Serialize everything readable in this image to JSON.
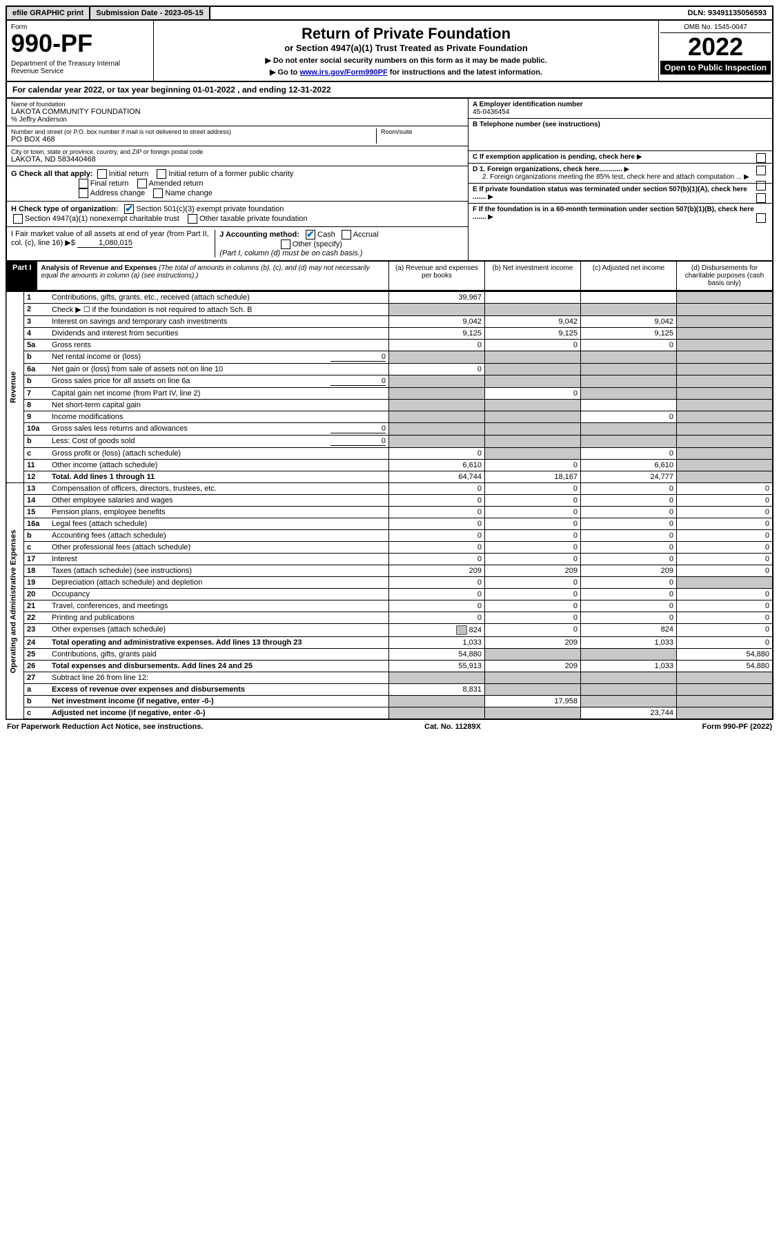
{
  "top_bar": {
    "efile": "efile GRAPHIC print",
    "submission": "Submission Date - 2023-05-15",
    "dln": "DLN: 93491135056593"
  },
  "header": {
    "form_label": "Form",
    "form_number": "990-PF",
    "dept": "Department of the Treasury\nInternal Revenue Service",
    "title": "Return of Private Foundation",
    "subtitle": "or Section 4947(a)(1) Trust Treated as Private Foundation",
    "instr1": "▶ Do not enter social security numbers on this form as it may be made public.",
    "instr2_pre": "▶ Go to ",
    "instr2_link": "www.irs.gov/Form990PF",
    "instr2_post": " for instructions and the latest information.",
    "omb": "OMB No. 1545-0047",
    "year": "2022",
    "open": "Open to Public Inspection"
  },
  "cal_year": "For calendar year 2022, or tax year beginning 01-01-2022          , and ending 12-31-2022",
  "entity": {
    "name_label": "Name of foundation",
    "name": "LAKOTA COMMUNITY FOUNDATION",
    "careof": "% Jeffry Anderson",
    "street_label": "Number and street (or P.O. box number if mail is not delivered to street address)",
    "street": "PO BOX 468",
    "room_label": "Room/suite",
    "city_label": "City or town, state or province, country, and ZIP or foreign postal code",
    "city": "LAKOTA, ND  583440468",
    "ein_label": "A Employer identification number",
    "ein": "45-0436454",
    "phone_label": "B Telephone number (see instructions)",
    "c_label": "C If exemption application is pending, check here",
    "d1": "D 1. Foreign organizations, check here............",
    "d2": "2. Foreign organizations meeting the 85% test, check here and attach computation ...",
    "e": "E If private foundation status was terminated under section 507(b)(1)(A), check here .......",
    "f": "F If the foundation is in a 60-month termination under section 507(b)(1)(B), check here .......",
    "g_label": "G Check all that apply:",
    "g_opts": [
      "Initial return",
      "Initial return of a former public charity",
      "Final return",
      "Amended return",
      "Address change",
      "Name change"
    ],
    "h_label": "H Check type of organization:",
    "h1": "Section 501(c)(3) exempt private foundation",
    "h2": "Section 4947(a)(1) nonexempt charitable trust",
    "h3": "Other taxable private foundation",
    "i_label": "I Fair market value of all assets at end of year (from Part II, col. (c), line 16) ▶$ ",
    "i_val": "1,080,015",
    "j_label": "J Accounting method:",
    "j_cash": "Cash",
    "j_accrual": "Accrual",
    "j_other": "Other (specify)",
    "j_note": "(Part I, column (d) must be on cash basis.)"
  },
  "part1": {
    "label": "Part I",
    "title": "Analysis of Revenue and Expenses",
    "title_note": " (The total of amounts in columns (b), (c), and (d) may not necessarily equal the amounts in column (a) (see instructions).)",
    "cols": {
      "a": "(a) Revenue and expenses per books",
      "b": "(b) Net investment income",
      "c": "(c) Adjusted net income",
      "d": "(d) Disbursements for charitable purposes (cash basis only)"
    }
  },
  "side_labels": {
    "revenue": "Revenue",
    "expenses": "Operating and Administrative Expenses"
  },
  "rows": [
    {
      "n": "1",
      "desc": "Contributions, gifts, grants, etc., received (attach schedule)",
      "a": "39,967",
      "b": "",
      "c": "",
      "d": "",
      "d_shade": true
    },
    {
      "n": "2",
      "desc": "Check ▶ ☐ if the foundation is not required to attach Sch. B",
      "a": "",
      "b": "",
      "c": "",
      "d": "",
      "a_shade": true,
      "b_shade": true,
      "c_shade": true,
      "d_shade": true,
      "no_border": true
    },
    {
      "n": "3",
      "desc": "Interest on savings and temporary cash investments",
      "a": "9,042",
      "b": "9,042",
      "c": "9,042",
      "d": "",
      "d_shade": true
    },
    {
      "n": "4",
      "desc": "Dividends and interest from securities",
      "a": "9,125",
      "b": "9,125",
      "c": "9,125",
      "d": "",
      "d_shade": true
    },
    {
      "n": "5a",
      "desc": "Gross rents",
      "a": "0",
      "b": "0",
      "c": "0",
      "d": "",
      "d_shade": true
    },
    {
      "n": "b",
      "desc": "Net rental income or (loss)",
      "inline_val": "0",
      "a": "",
      "b": "",
      "c": "",
      "d": "",
      "a_shade": true,
      "b_shade": true,
      "c_shade": true,
      "d_shade": true
    },
    {
      "n": "6a",
      "desc": "Net gain or (loss) from sale of assets not on line 10",
      "a": "0",
      "b": "",
      "c": "",
      "d": "",
      "b_shade": true,
      "c_shade": true,
      "d_shade": true
    },
    {
      "n": "b",
      "desc": "Gross sales price for all assets on line 6a",
      "inline_val": "0",
      "a": "",
      "b": "",
      "c": "",
      "d": "",
      "a_shade": true,
      "b_shade": true,
      "c_shade": true,
      "d_shade": true
    },
    {
      "n": "7",
      "desc": "Capital gain net income (from Part IV, line 2)",
      "a": "",
      "b": "0",
      "c": "",
      "d": "",
      "a_shade": true,
      "c_shade": true,
      "d_shade": true
    },
    {
      "n": "8",
      "desc": "Net short-term capital gain",
      "a": "",
      "b": "",
      "c": "",
      "d": "",
      "a_shade": true,
      "b_shade": true,
      "d_shade": true
    },
    {
      "n": "9",
      "desc": "Income modifications",
      "a": "",
      "b": "",
      "c": "0",
      "d": "",
      "a_shade": true,
      "b_shade": true,
      "d_shade": true
    },
    {
      "n": "10a",
      "desc": "Gross sales less returns and allowances",
      "inline_val": "0",
      "a": "",
      "b": "",
      "c": "",
      "d": "",
      "a_shade": true,
      "b_shade": true,
      "c_shade": true,
      "d_shade": true
    },
    {
      "n": "b",
      "desc": "Less: Cost of goods sold",
      "inline_val": "0",
      "a": "",
      "b": "",
      "c": "",
      "d": "",
      "a_shade": true,
      "b_shade": true,
      "c_shade": true,
      "d_shade": true
    },
    {
      "n": "c",
      "desc": "Gross profit or (loss) (attach schedule)",
      "a": "0",
      "b": "",
      "c": "0",
      "d": "",
      "b_shade": true,
      "d_shade": true
    },
    {
      "n": "11",
      "desc": "Other income (attach schedule)",
      "a": "6,610",
      "b": "0",
      "c": "6,610",
      "d": "",
      "d_shade": true
    },
    {
      "n": "12",
      "desc": "Total. Add lines 1 through 11",
      "bold": true,
      "a": "64,744",
      "b": "18,167",
      "c": "24,777",
      "d": "",
      "d_shade": true
    }
  ],
  "exp_rows": [
    {
      "n": "13",
      "desc": "Compensation of officers, directors, trustees, etc.",
      "a": "0",
      "b": "0",
      "c": "0",
      "d": "0"
    },
    {
      "n": "14",
      "desc": "Other employee salaries and wages",
      "a": "0",
      "b": "0",
      "c": "0",
      "d": "0"
    },
    {
      "n": "15",
      "desc": "Pension plans, employee benefits",
      "a": "0",
      "b": "0",
      "c": "0",
      "d": "0"
    },
    {
      "n": "16a",
      "desc": "Legal fees (attach schedule)",
      "a": "0",
      "b": "0",
      "c": "0",
      "d": "0"
    },
    {
      "n": "b",
      "desc": "Accounting fees (attach schedule)",
      "a": "0",
      "b": "0",
      "c": "0",
      "d": "0"
    },
    {
      "n": "c",
      "desc": "Other professional fees (attach schedule)",
      "a": "0",
      "b": "0",
      "c": "0",
      "d": "0"
    },
    {
      "n": "17",
      "desc": "Interest",
      "a": "0",
      "b": "0",
      "c": "0",
      "d": "0"
    },
    {
      "n": "18",
      "desc": "Taxes (attach schedule) (see instructions)",
      "a": "209",
      "b": "209",
      "c": "209",
      "d": "0"
    },
    {
      "n": "19",
      "desc": "Depreciation (attach schedule) and depletion",
      "a": "0",
      "b": "0",
      "c": "0",
      "d": "",
      "d_shade": true
    },
    {
      "n": "20",
      "desc": "Occupancy",
      "a": "0",
      "b": "0",
      "c": "0",
      "d": "0"
    },
    {
      "n": "21",
      "desc": "Travel, conferences, and meetings",
      "a": "0",
      "b": "0",
      "c": "0",
      "d": "0"
    },
    {
      "n": "22",
      "desc": "Printing and publications",
      "a": "0",
      "b": "0",
      "c": "0",
      "d": "0"
    },
    {
      "n": "23",
      "desc": "Other expenses (attach schedule)",
      "icon": true,
      "a": "824",
      "b": "0",
      "c": "824",
      "d": "0"
    },
    {
      "n": "24",
      "desc": "Total operating and administrative expenses. Add lines 13 through 23",
      "bold": true,
      "a": "1,033",
      "b": "209",
      "c": "1,033",
      "d": "0"
    },
    {
      "n": "25",
      "desc": "Contributions, gifts, grants paid",
      "a": "54,880",
      "b": "",
      "c": "",
      "d": "54,880",
      "b_shade": true,
      "c_shade": true
    },
    {
      "n": "26",
      "desc": "Total expenses and disbursements. Add lines 24 and 25",
      "bold": true,
      "a": "55,913",
      "b": "209",
      "c": "1,033",
      "d": "54,880"
    },
    {
      "n": "27",
      "desc": "Subtract line 26 from line 12:",
      "a": "",
      "b": "",
      "c": "",
      "d": "",
      "a_shade": true,
      "b_shade": true,
      "c_shade": true,
      "d_shade": true
    },
    {
      "n": "a",
      "desc": "Excess of revenue over expenses and disbursements",
      "bold": true,
      "a": "8,831",
      "b": "",
      "c": "",
      "d": "",
      "b_shade": true,
      "c_shade": true,
      "d_shade": true
    },
    {
      "n": "b",
      "desc": "Net investment income (if negative, enter -0-)",
      "bold": true,
      "a": "",
      "b": "17,958",
      "c": "",
      "d": "",
      "a_shade": true,
      "c_shade": true,
      "d_shade": true
    },
    {
      "n": "c",
      "desc": "Adjusted net income (if negative, enter -0-)",
      "bold": true,
      "a": "",
      "b": "",
      "c": "23,744",
      "d": "",
      "a_shade": true,
      "b_shade": true,
      "d_shade": true
    }
  ],
  "footer": {
    "left": "For Paperwork Reduction Act Notice, see instructions.",
    "mid": "Cat. No. 11289X",
    "right": "Form 990-PF (2022)"
  }
}
